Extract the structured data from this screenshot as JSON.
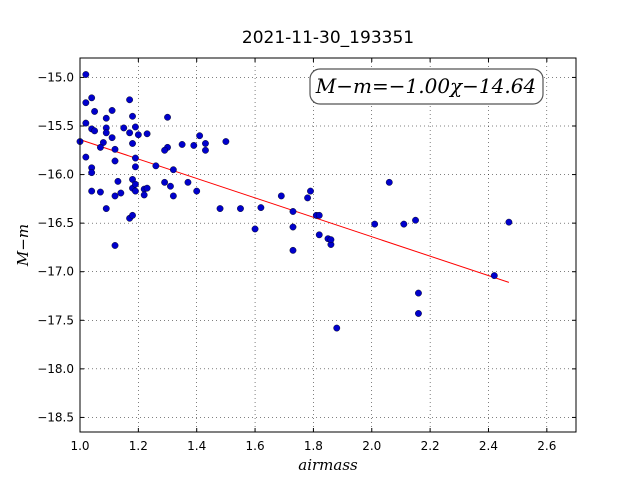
{
  "chart_data": {
    "type": "scatter",
    "title": "2021-11-30_193351",
    "xlabel": "airmass",
    "ylabel": "M−m",
    "xlim": [
      1.0,
      2.7
    ],
    "ylim": [
      -18.65,
      -14.8
    ],
    "y_inverted": true,
    "grid": true,
    "x_ticks": [
      "1.0",
      "1.2",
      "1.4",
      "1.6",
      "1.8",
      "2.0",
      "2.2",
      "2.4",
      "2.6"
    ],
    "y_ticks": [
      "−15.0",
      "−15.5",
      "−16.0",
      "−16.5",
      "−17.0",
      "−17.5",
      "−18.0",
      "−18.5"
    ],
    "annotation": "M−m=−1.00χ−14.64",
    "marker_color": "#0000cc",
    "fit_color": "#ff0000",
    "fit": {
      "slope": -1.0,
      "intercept": -14.64,
      "x_range": [
        1.0,
        2.47
      ]
    },
    "points": [
      {
        "x": 1.0,
        "y": -15.66
      },
      {
        "x": 1.02,
        "y": -14.97
      },
      {
        "x": 1.02,
        "y": -15.26
      },
      {
        "x": 1.04,
        "y": -15.21
      },
      {
        "x": 1.05,
        "y": -15.35
      },
      {
        "x": 1.02,
        "y": -15.47
      },
      {
        "x": 1.04,
        "y": -15.53
      },
      {
        "x": 1.05,
        "y": -15.55
      },
      {
        "x": 1.02,
        "y": -15.82
      },
      {
        "x": 1.04,
        "y": -15.93
      },
      {
        "x": 1.04,
        "y": -15.98
      },
      {
        "x": 1.04,
        "y": -16.17
      },
      {
        "x": 1.07,
        "y": -16.18
      },
      {
        "x": 1.08,
        "y": -15.67
      },
      {
        "x": 1.07,
        "y": -15.72
      },
      {
        "x": 1.09,
        "y": -15.42
      },
      {
        "x": 1.09,
        "y": -15.52
      },
      {
        "x": 1.09,
        "y": -15.57
      },
      {
        "x": 1.11,
        "y": -15.34
      },
      {
        "x": 1.11,
        "y": -15.62
      },
      {
        "x": 1.12,
        "y": -15.74
      },
      {
        "x": 1.12,
        "y": -15.86
      },
      {
        "x": 1.13,
        "y": -16.07
      },
      {
        "x": 1.12,
        "y": -16.22
      },
      {
        "x": 1.14,
        "y": -16.19
      },
      {
        "x": 1.09,
        "y": -16.35
      },
      {
        "x": 1.12,
        "y": -16.73
      },
      {
        "x": 1.15,
        "y": -15.52
      },
      {
        "x": 1.17,
        "y": -15.23
      },
      {
        "x": 1.18,
        "y": -15.4
      },
      {
        "x": 1.17,
        "y": -15.57
      },
      {
        "x": 1.18,
        "y": -15.68
      },
      {
        "x": 1.19,
        "y": -15.51
      },
      {
        "x": 1.2,
        "y": -15.59
      },
      {
        "x": 1.19,
        "y": -15.83
      },
      {
        "x": 1.19,
        "y": -15.92
      },
      {
        "x": 1.18,
        "y": -16.05
      },
      {
        "x": 1.18,
        "y": -16.14
      },
      {
        "x": 1.19,
        "y": -16.1
      },
      {
        "x": 1.19,
        "y": -16.17
      },
      {
        "x": 1.17,
        "y": -16.45
      },
      {
        "x": 1.18,
        "y": -16.42
      },
      {
        "x": 1.22,
        "y": -16.15
      },
      {
        "x": 1.22,
        "y": -16.21
      },
      {
        "x": 1.23,
        "y": -16.14
      },
      {
        "x": 1.23,
        "y": -15.58
      },
      {
        "x": 1.26,
        "y": -15.91
      },
      {
        "x": 1.3,
        "y": -15.41
      },
      {
        "x": 1.3,
        "y": -15.72
      },
      {
        "x": 1.29,
        "y": -15.75
      },
      {
        "x": 1.29,
        "y": -16.08
      },
      {
        "x": 1.31,
        "y": -16.12
      },
      {
        "x": 1.32,
        "y": -15.95
      },
      {
        "x": 1.32,
        "y": -16.22
      },
      {
        "x": 1.35,
        "y": -15.69
      },
      {
        "x": 1.37,
        "y": -16.08
      },
      {
        "x": 1.39,
        "y": -15.7
      },
      {
        "x": 1.41,
        "y": -15.6
      },
      {
        "x": 1.43,
        "y": -15.68
      },
      {
        "x": 1.43,
        "y": -15.75
      },
      {
        "x": 1.4,
        "y": -16.17
      },
      {
        "x": 1.48,
        "y": -16.35
      },
      {
        "x": 1.5,
        "y": -15.66
      },
      {
        "x": 1.55,
        "y": -16.35
      },
      {
        "x": 1.6,
        "y": -16.56
      },
      {
        "x": 1.62,
        "y": -16.34
      },
      {
        "x": 1.69,
        "y": -16.22
      },
      {
        "x": 1.73,
        "y": -16.38
      },
      {
        "x": 1.73,
        "y": -16.54
      },
      {
        "x": 1.73,
        "y": -16.78
      },
      {
        "x": 1.78,
        "y": -16.24
      },
      {
        "x": 1.79,
        "y": -16.17
      },
      {
        "x": 1.81,
        "y": -16.42
      },
      {
        "x": 1.82,
        "y": -16.42
      },
      {
        "x": 1.82,
        "y": -16.62
      },
      {
        "x": 1.85,
        "y": -16.66
      },
      {
        "x": 1.86,
        "y": -16.72
      },
      {
        "x": 1.86,
        "y": -16.67
      },
      {
        "x": 1.88,
        "y": -17.58
      },
      {
        "x": 2.01,
        "y": -16.51
      },
      {
        "x": 2.06,
        "y": -16.08
      },
      {
        "x": 2.11,
        "y": -16.51
      },
      {
        "x": 2.15,
        "y": -16.47
      },
      {
        "x": 2.16,
        "y": -17.22
      },
      {
        "x": 2.16,
        "y": -17.43
      },
      {
        "x": 2.42,
        "y": -17.04
      },
      {
        "x": 2.47,
        "y": -16.49
      }
    ]
  }
}
